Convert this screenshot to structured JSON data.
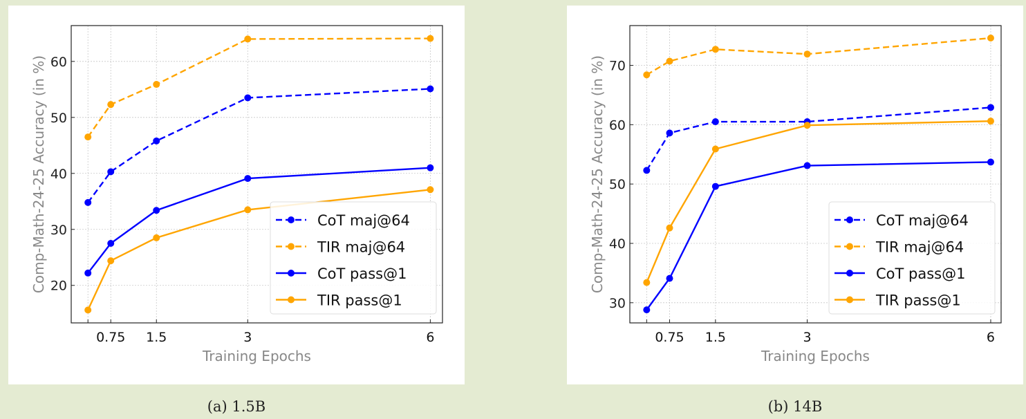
{
  "chart_data": [
    {
      "type": "line",
      "caption": "(a) 1.5B",
      "xlabel": "Training Epochs",
      "ylabel": "Comp-Math-24-25 Accuracy (in %)",
      "x": [
        0.375,
        0.75,
        1.5,
        3,
        6
      ],
      "xticks": [
        0.375,
        0.75,
        1.5,
        3,
        6
      ],
      "xtick_labels": [
        "",
        "0.75",
        "1.5",
        "3",
        "6"
      ],
      "yticks": [
        20,
        30,
        40,
        50,
        60
      ],
      "xlim": [
        0.1,
        6.2
      ],
      "ylim": [
        13.3,
        66.4
      ],
      "grid": true,
      "legend": "bottom-right",
      "series": [
        {
          "name": "CoT maj@64",
          "color": "#0000ff",
          "dashed": true,
          "values": [
            34.8,
            40.3,
            45.8,
            53.5,
            55.1
          ]
        },
        {
          "name": "TIR maj@64",
          "color": "#ffa500",
          "dashed": true,
          "values": [
            46.5,
            52.3,
            55.9,
            64.0,
            64.1
          ]
        },
        {
          "name": "CoT pass@1",
          "color": "#0000ff",
          "dashed": false,
          "values": [
            22.2,
            27.5,
            33.4,
            39.1,
            41.0
          ]
        },
        {
          "name": "TIR pass@1",
          "color": "#ffa500",
          "dashed": false,
          "values": [
            15.6,
            24.4,
            28.5,
            33.5,
            37.1
          ]
        }
      ]
    },
    {
      "type": "line",
      "caption": "(b) 14B",
      "xlabel": "Training Epochs",
      "ylabel": "Comp-Math-24-25 Accuracy (in %)",
      "x": [
        0.375,
        0.75,
        1.5,
        3,
        6
      ],
      "xticks": [
        0.375,
        0.75,
        1.5,
        3,
        6
      ],
      "xtick_labels": [
        "",
        "0.75",
        "1.5",
        "3",
        "6"
      ],
      "yticks": [
        30,
        40,
        50,
        60,
        70
      ],
      "xlim": [
        0.1,
        6.17
      ],
      "ylim": [
        26.6,
        76.7
      ],
      "grid": true,
      "legend": "bottom-right",
      "series": [
        {
          "name": "CoT maj@64",
          "color": "#0000ff",
          "dashed": true,
          "values": [
            52.3,
            58.6,
            60.5,
            60.5,
            62.9
          ]
        },
        {
          "name": "TIR maj@64",
          "color": "#ffa500",
          "dashed": true,
          "values": [
            68.4,
            70.7,
            72.7,
            71.9,
            74.6
          ]
        },
        {
          "name": "CoT pass@1",
          "color": "#0000ff",
          "dashed": false,
          "values": [
            28.8,
            34.1,
            49.6,
            53.1,
            53.7
          ]
        },
        {
          "name": "TIR pass@1",
          "color": "#ffa500",
          "dashed": false,
          "values": [
            33.4,
            42.6,
            55.9,
            59.9,
            60.6
          ]
        }
      ]
    }
  ]
}
